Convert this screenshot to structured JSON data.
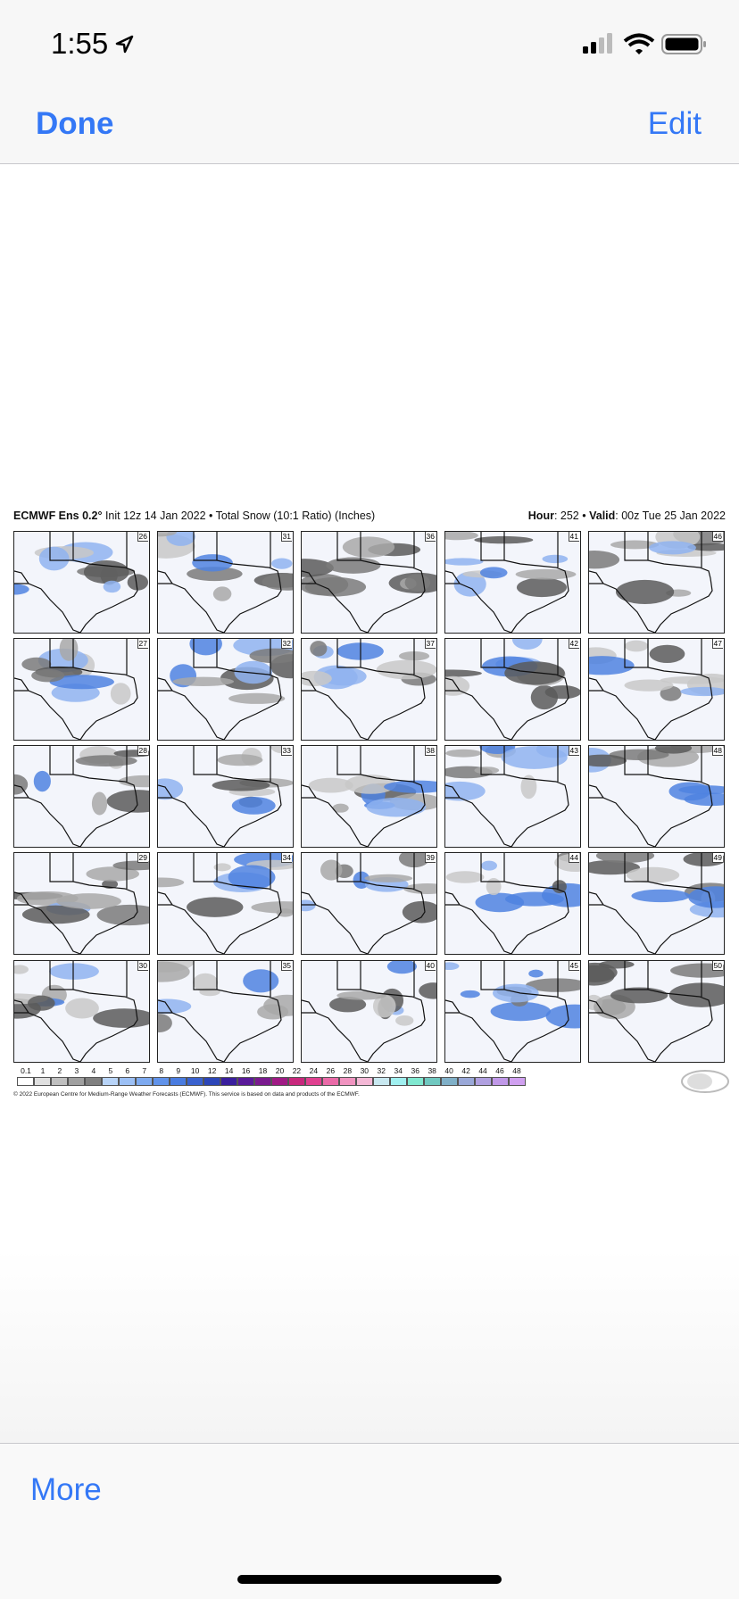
{
  "status_bar": {
    "time": "1:55"
  },
  "nav": {
    "done": "Done",
    "edit": "Edit"
  },
  "image": {
    "model": "ECMWF Ens 0.2°",
    "subtitle": "Init 12z 14 Jan 2022 • Total Snow (10:1 Ratio) (Inches)",
    "hour_label": "Hour",
    "hour_value": ": 252 •",
    "valid_label": "Valid",
    "valid_value": ": 00z Tue 25 Jan 2022",
    "panels": [
      [
        26,
        27,
        28,
        29,
        30
      ],
      [
        31,
        32,
        33,
        34,
        35
      ],
      [
        36,
        37,
        38,
        39,
        40
      ],
      [
        41,
        42,
        43,
        44,
        45
      ],
      [
        46,
        47,
        48,
        49,
        50
      ]
    ],
    "legend": [
      "0.1",
      "1",
      "2",
      "3",
      "4",
      "5",
      "6",
      "7",
      "8",
      "9",
      "10",
      "12",
      "14",
      "16",
      "18",
      "20",
      "22",
      "24",
      "26",
      "28",
      "30",
      "32",
      "34",
      "36",
      "38",
      "40",
      "42",
      "44",
      "46",
      "48"
    ],
    "copyright": "© 2022 European Centre for Medium-Range Weather Forecasts (ECMWF). This service is based on data and products of the ECMWF."
  },
  "toolbar": {
    "more": "More"
  }
}
